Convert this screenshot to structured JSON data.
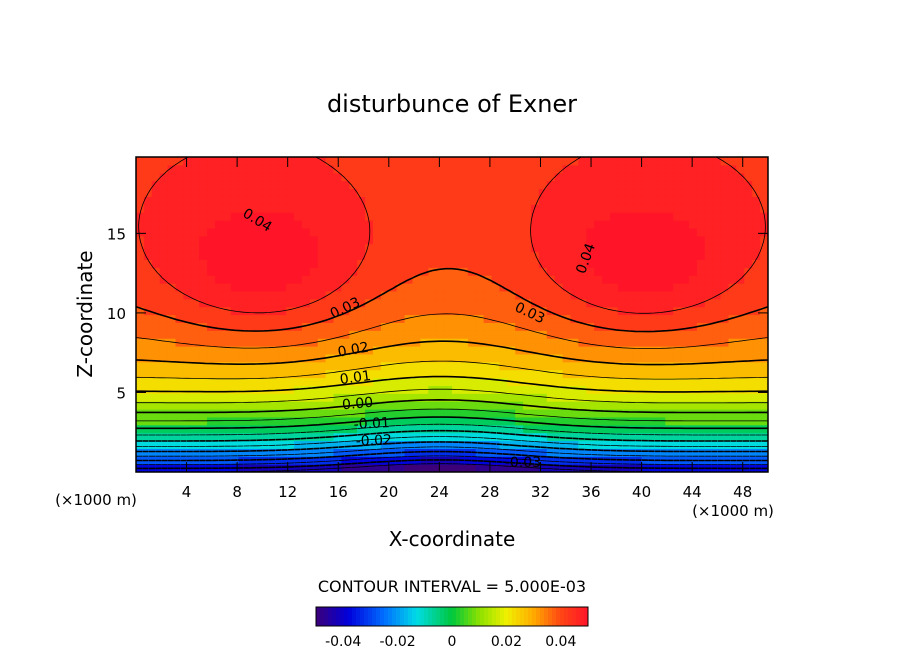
{
  "chart_data": {
    "type": "contour",
    "title": "disturbunce of Exner",
    "xlabel": "X-coordinate",
    "ylabel": "Z-coordinate",
    "x_unit": "(×1000 m)",
    "z_unit": "(×1000 m)",
    "xlim": [
      0,
      50
    ],
    "ylim": [
      0,
      19.8
    ],
    "x_ticks": [
      4,
      8,
      12,
      16,
      20,
      24,
      28,
      32,
      36,
      40,
      44,
      48
    ],
    "y_ticks": [
      5,
      10,
      15
    ],
    "contour_interval_text": "CONTOUR INTERVAL = 5.000E-03",
    "contour_interval": 0.005,
    "value_range": [
      -0.05,
      0.05
    ],
    "colorbar_ticks": [
      "-0.04",
      "-0.02",
      "0",
      "0.02",
      "0.04"
    ],
    "contour_labels": [
      "0.04",
      "0.04",
      "0.03",
      "0.03",
      "0.02",
      "0.01",
      "0.00",
      "-0.01",
      "-0.02",
      "-0.03"
    ],
    "field_model": {
      "description": "approximate field read from the plot",
      "max_value": 0.045,
      "min_value": -0.045
    },
    "grid": false,
    "colormap": "rainbow"
  }
}
